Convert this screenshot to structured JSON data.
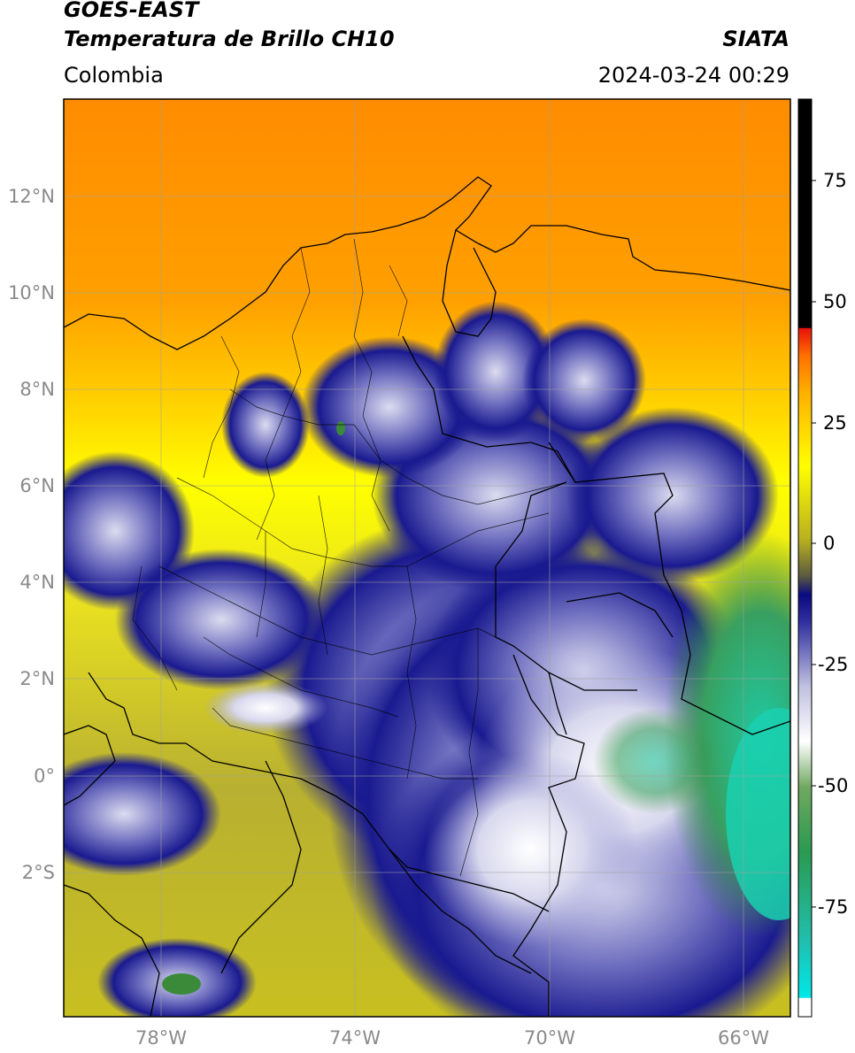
{
  "header": {
    "title_line1": "GOES-EAST",
    "title_line2": "Temperatura de Brillo CH10",
    "brand": "SIATA",
    "region": "Colombia",
    "timestamp": "2024-03-24 00:29"
  },
  "map": {
    "lon_labels": [
      "78°W",
      "74°W",
      "70°W",
      "66°W"
    ],
    "lat_labels": [
      "12°N",
      "10°N",
      "8°N",
      "6°N",
      "4°N",
      "2°N",
      "0°",
      "2°S"
    ]
  },
  "colorbar": {
    "ticks": [
      "75",
      "50",
      "25",
      "0",
      "-25",
      "-50",
      "-75"
    ],
    "colors": {
      "black": "#000000",
      "red": "#e8120a",
      "orange": "#ff9a00",
      "yellow": "#ffff00",
      "olive": "#9b9b1e",
      "navy": "#0a0a80",
      "lavender": "#b8b8e0",
      "white": "#ffffff",
      "green": "#3a8a3a",
      "teal": "#1ad0b0",
      "cyan": "#00e8e8"
    }
  }
}
